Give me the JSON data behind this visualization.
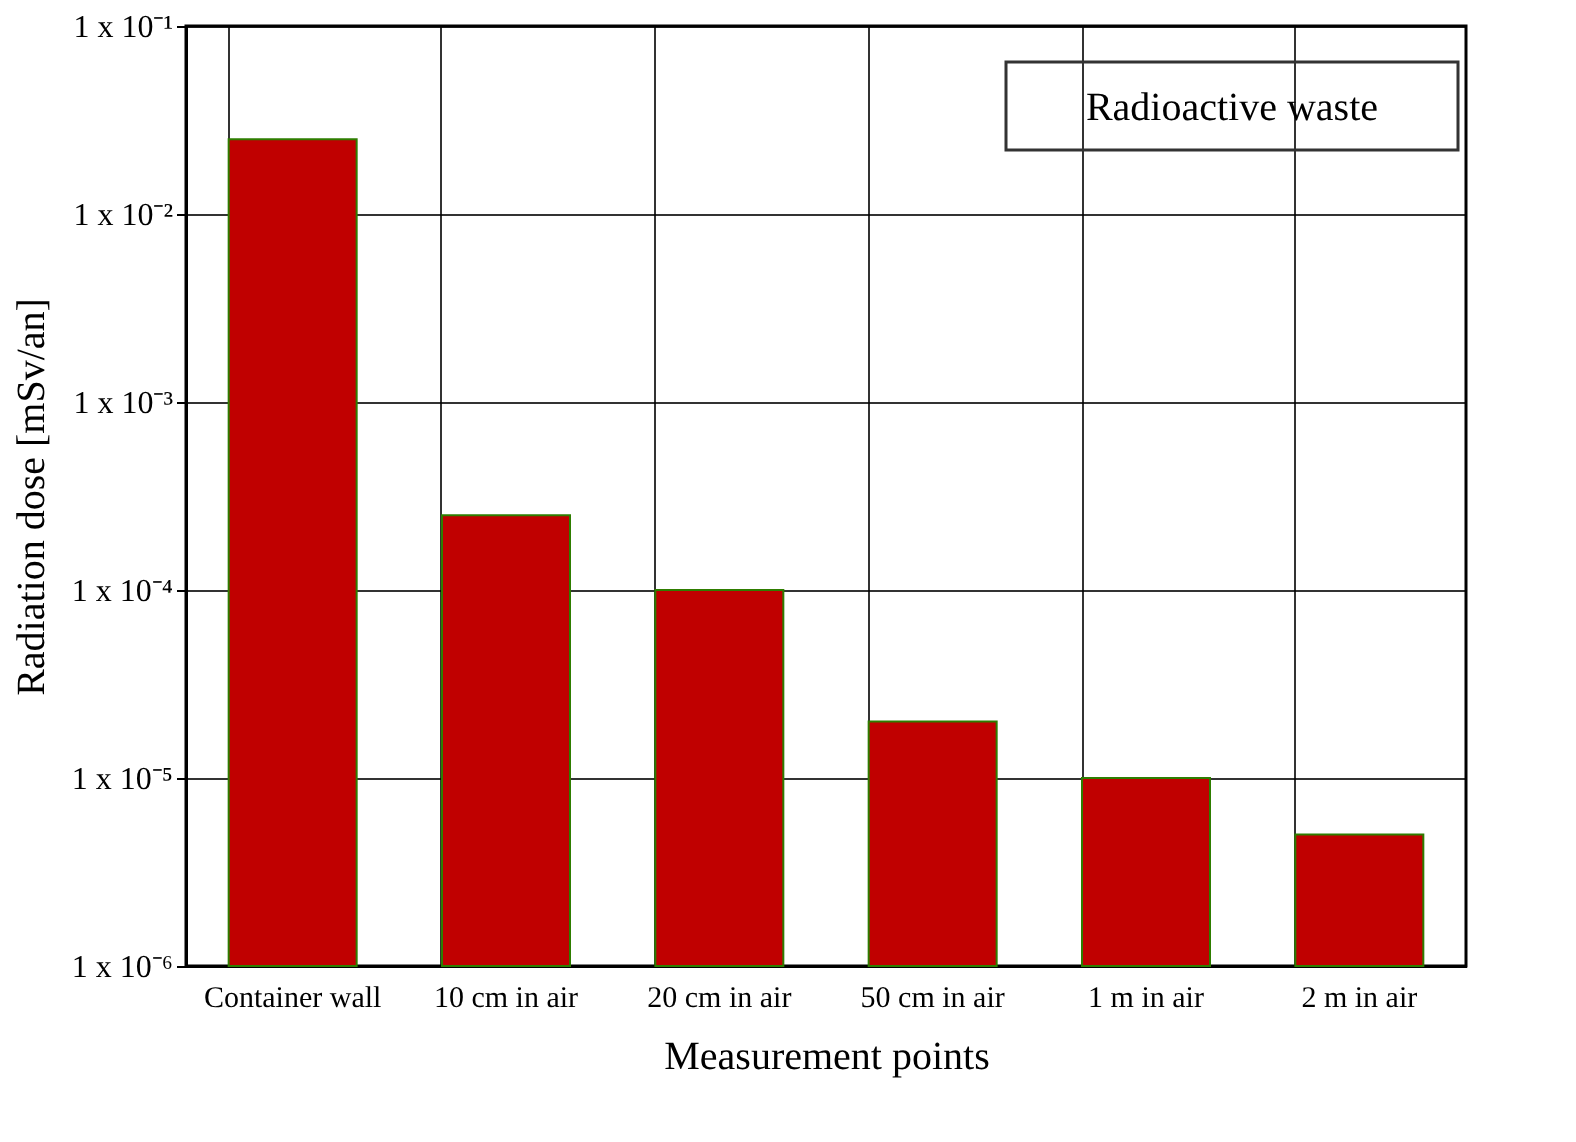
{
  "chart_data": {
    "type": "bar",
    "xlabel": "Measurement points",
    "ylabel": "Radiation dose [mSv/an]",
    "categories": [
      "Container wall",
      "10 cm in air",
      "20 cm in air",
      "50 cm in air",
      "1 m in air",
      "2 m in air"
    ],
    "values": [
      0.025,
      0.00025,
      0.0001,
      2e-05,
      1e-05,
      5e-06
    ],
    "color": "#c00000",
    "log": true,
    "ylim": [
      1e-06,
      0.1
    ],
    "yticks": [
      {
        "value": 1e-06,
        "label": "1 x 10⁻⁶"
      },
      {
        "value": 1e-05,
        "label": "1 x 10⁻⁵"
      },
      {
        "value": 0.0001,
        "label": "1 x 10⁻⁴"
      },
      {
        "value": 0.001,
        "label": "1 x 10⁻³"
      },
      {
        "value": 0.01,
        "label": "1 x 10⁻²"
      },
      {
        "value": 0.1,
        "label": "1 x 10⁻¹"
      }
    ],
    "grid": true,
    "annotations": [
      "Radioactive waste"
    ]
  }
}
